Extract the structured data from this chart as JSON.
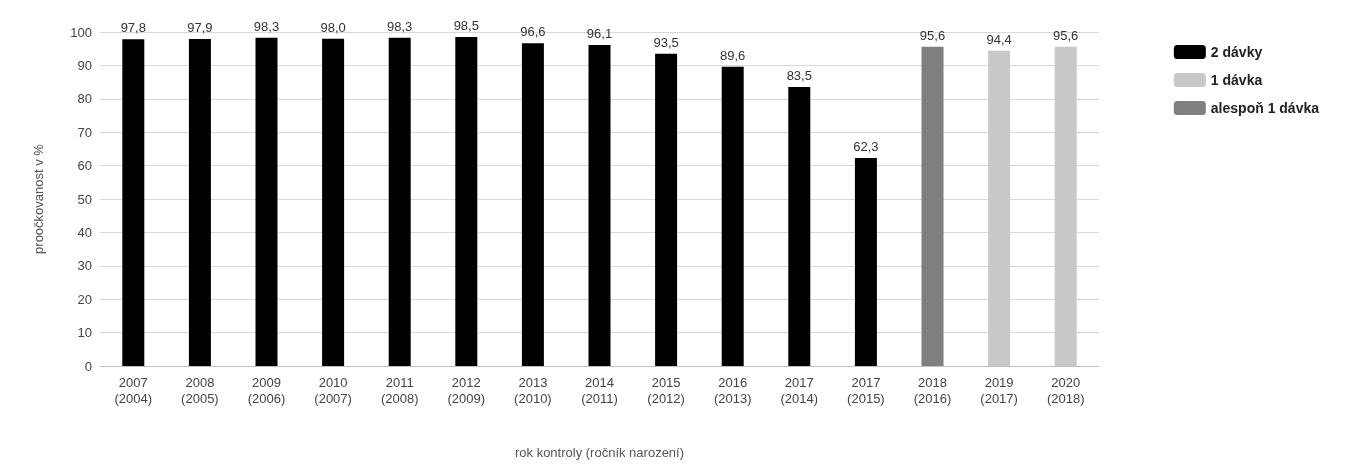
{
  "chart_data": {
    "type": "bar",
    "ylabel": "proočkovanost v %",
    "xlabel": "rok kontroly (ročník narození)",
    "categories": [
      "2007\n(2004)",
      "2008\n(2005)",
      "2009\n(2006)",
      "2010\n(2007)",
      "2011\n(2008)",
      "2012\n(2009)",
      "2013\n(2010)",
      "2014\n(2011)",
      "2015\n(2012)",
      "2016\n(2013)",
      "2017\n(2014)",
      "2017\n(2015)",
      "2018\n(2016)",
      "2019\n(2017)",
      "2020\n(2018)"
    ],
    "series": [
      {
        "name": "2 dávky",
        "color": "#000000",
        "values": [
          97.8,
          97.9,
          98.3,
          98.0,
          98.3,
          98.5,
          96.6,
          96.1,
          93.5,
          89.6,
          83.5,
          62.3,
          null,
          null,
          null
        ]
      },
      {
        "name": "1 dávka",
        "color": "#c8c8c8",
        "values": [
          null,
          null,
          null,
          null,
          null,
          null,
          null,
          null,
          null,
          null,
          null,
          null,
          null,
          94.4,
          95.6
        ]
      },
      {
        "name": "alespoň 1 dávka",
        "color": "#7f7f7f",
        "values": [
          null,
          null,
          null,
          null,
          null,
          null,
          null,
          null,
          null,
          null,
          null,
          null,
          95.6,
          null,
          null
        ]
      }
    ],
    "value_labels": [
      "97,8",
      "97,9",
      "98,3",
      "98,0",
      "98,3",
      "98,5",
      "96,6",
      "96,1",
      "93,5",
      "89,6",
      "83,5",
      "62,3",
      "95,6",
      "94,4",
      "95,6"
    ],
    "ylim": [
      0,
      100
    ],
    "yticks": [
      0,
      10,
      20,
      30,
      40,
      50,
      60,
      70,
      80,
      90,
      100
    ],
    "grid": "y",
    "legend": "right"
  }
}
